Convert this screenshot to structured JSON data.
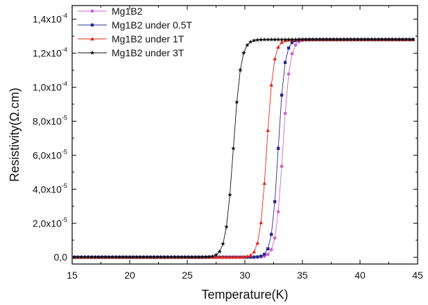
{
  "chart_data": {
    "type": "scatter",
    "xlabel": "Temperature(K)",
    "ylabel": "Resistivity(Ω.cm)",
    "xlim": [
      15,
      45
    ],
    "ylim": [
      -4e-06,
      0.000148
    ],
    "x_ticks": [
      15,
      20,
      25,
      30,
      35,
      40,
      45
    ],
    "y_ticks": [
      {
        "value": 0,
        "mantissa": "0,0",
        "exponent": ""
      },
      {
        "value": 2e-05,
        "mantissa": "2,0x10",
        "exponent": "-5"
      },
      {
        "value": 4e-05,
        "mantissa": "4,0x10",
        "exponent": "-5"
      },
      {
        "value": 6e-05,
        "mantissa": "6,0x10",
        "exponent": "-5"
      },
      {
        "value": 8e-05,
        "mantissa": "8,0x10",
        "exponent": "-5"
      },
      {
        "value": 0.0001,
        "mantissa": "1,0x10",
        "exponent": "-4"
      },
      {
        "value": 0.00012,
        "mantissa": "1,2x10",
        "exponent": "-4"
      },
      {
        "value": 0.00014,
        "mantissa": "1,4x10",
        "exponent": "-4"
      }
    ],
    "grid": false,
    "legend_position": "top-left",
    "series": [
      {
        "name": "Mg1B2",
        "color": "#cc66cc",
        "marker": "circle",
        "x_start": 15.2,
        "x_end": 44.6,
        "step": 0.3,
        "tc": 33.3,
        "width": 0.3,
        "rho_n": 0.000128
      },
      {
        "name": "Mg1B2 under 0.5T",
        "color": "#2a2a8c",
        "marker": "square",
        "x_start": 15.2,
        "x_end": 44.6,
        "step": 0.3,
        "tc": 32.9,
        "width": 0.28,
        "rho_n": 0.000128
      },
      {
        "name": "Mg1B2 under 1T",
        "color": "#e8251c",
        "marker": "triangle",
        "x_start": 15.2,
        "x_end": 44.6,
        "step": 0.3,
        "tc": 31.9,
        "width": 0.3,
        "rho_n": 0.000128
      },
      {
        "name": "Mg1B2 under 3T",
        "color": "#111111",
        "marker": "star",
        "x_start": 15.2,
        "x_end": 44.6,
        "step": 0.3,
        "tc": 29.0,
        "width": 0.33,
        "rho_n": 0.000128
      }
    ]
  }
}
